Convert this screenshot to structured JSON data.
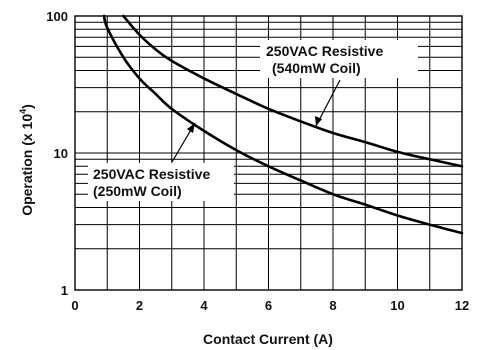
{
  "chart_data": {
    "type": "line",
    "title": "",
    "xlabel": "Contact Current (A)",
    "ylabel_text": "Operation (x 10",
    "ylabel_exp": "4",
    "ylabel_close": ")",
    "xlim": [
      0,
      12
    ],
    "ylim": [
      1,
      100
    ],
    "y_scale": "log",
    "grid": true,
    "x_ticks": [
      0,
      2,
      4,
      6,
      8,
      10,
      12
    ],
    "x_tick_labels": [
      "0",
      "2",
      "4",
      "6",
      "8",
      "10",
      "12"
    ],
    "y_ticks": [
      1,
      10,
      100
    ],
    "y_tick_labels": [
      "1",
      "10",
      "100"
    ],
    "series": [
      {
        "name": "250VAC Resistive (540mW Coil)",
        "label_lines": [
          "250VAC Resistive",
          "(540mW Coil)"
        ],
        "x": [
          1.5,
          2,
          2.5,
          3,
          4,
          5,
          6,
          7,
          8,
          9,
          10,
          11,
          12
        ],
        "y": [
          100,
          73,
          57,
          47,
          35,
          27,
          21,
          17,
          14,
          12,
          10.2,
          9,
          8
        ]
      },
      {
        "name": "250VAC Resistive (250mW Coil)",
        "label_lines": [
          "250VAC Resistive",
          "(250mW Coil)"
        ],
        "x": [
          0.9,
          1,
          1.5,
          2,
          2.5,
          3,
          4,
          5,
          6,
          7,
          8,
          9,
          10,
          11,
          12
        ],
        "y": [
          100,
          82,
          50,
          35,
          27,
          21,
          14.5,
          10.5,
          8,
          6.3,
          5,
          4.2,
          3.5,
          3,
          2.6
        ]
      }
    ]
  }
}
